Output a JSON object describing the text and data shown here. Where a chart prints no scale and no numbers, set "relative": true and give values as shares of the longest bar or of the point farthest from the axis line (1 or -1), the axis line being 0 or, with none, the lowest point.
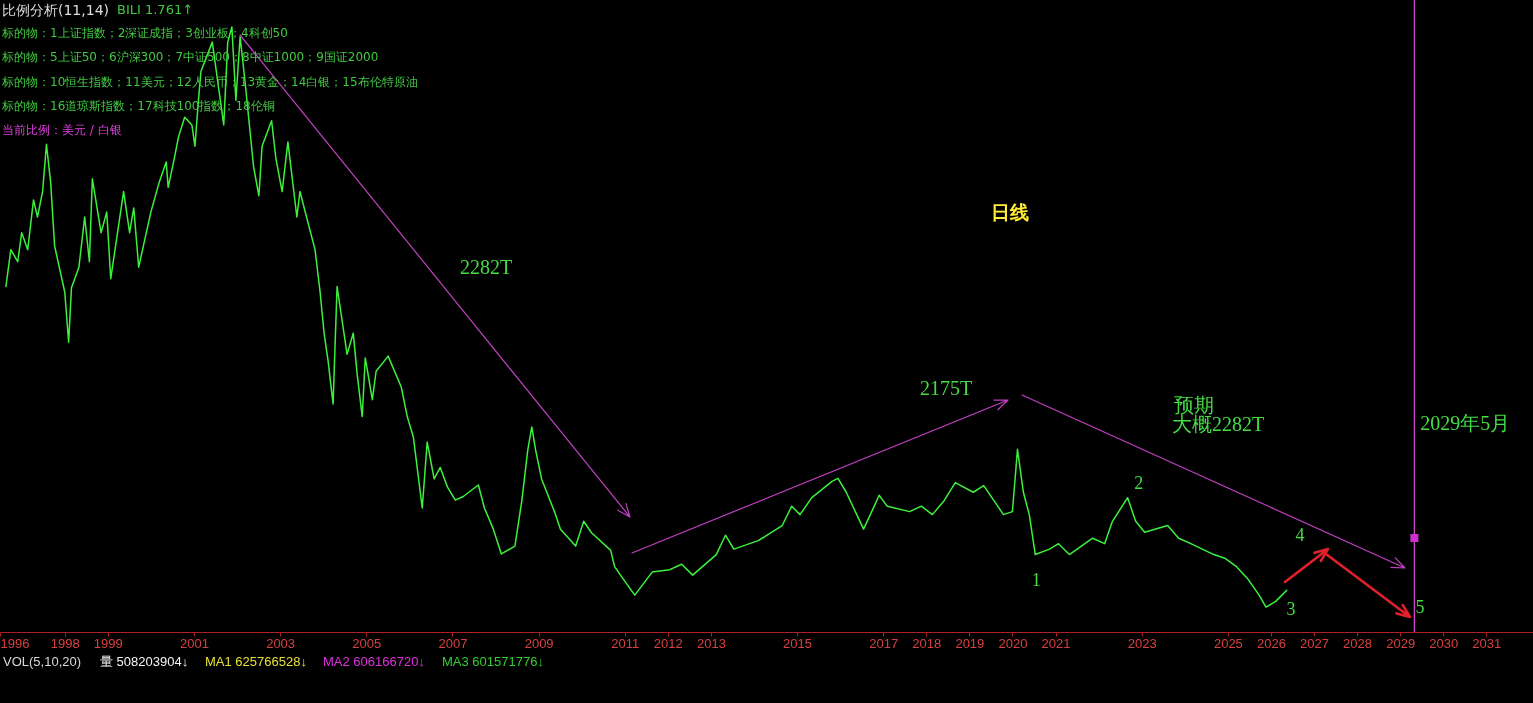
{
  "chart_data": {
    "type": "line",
    "title": "比例分析(11,14)",
    "relative": true,
    "xlim": [
      "1996-07",
      "2032-02"
    ],
    "xticks": [
      {
        "value": "1996-07",
        "label": "1996"
      },
      "1998",
      "1999",
      "2001",
      "2003",
      "2005",
      "2007",
      "2009",
      "2011",
      "2012",
      "2013",
      "2015",
      "2017",
      "2018",
      "2019",
      "2020",
      "2021",
      "2023",
      "2025",
      "2026",
      "2027",
      "2028",
      "2029",
      "2030",
      "2031"
    ],
    "x": [
      "1996-08-20",
      "1996-10-01",
      "1996-11-28",
      "1997-01-01",
      "1997-02-21",
      "1997-04-11",
      "1997-05-15",
      "1997-06-27",
      "1997-07-30",
      "1997-09-04",
      "1997-10-07",
      "1998-01-01",
      "1998-02-03",
      "1998-02-27",
      "1998-05-01",
      "1998-06-19",
      "1998-07-29",
      "1998-08-23",
      "1998-11-05",
      "1998-12-23",
      "1999-01-26",
      "1999-05-15",
      "1999-07-05",
      "1999-08-09",
      "1999-09-20",
      "2000-01-01",
      "2000-03-10",
      "2000-05-10",
      "2000-05-27",
      "2000-07-18",
      "2000-08-22",
      "2000-10-14",
      "2000-12-14",
      "2001-01-09",
      "2001-02-05",
      "2001-03-01",
      "2001-04-14",
      "2001-06-05",
      "2001-09-10",
      "2001-10-14",
      "2001-11-18",
      "2001-12-22",
      "2002-01-27",
      "2002-03-11",
      "2002-05-21",
      "2002-07-05",
      "2002-08-01",
      "2002-10-21",
      "2002-11-26",
      "2003-01-18",
      "2003-03-08",
      "2003-05-23",
      "2003-06-18",
      "2003-10-24",
      "2003-12-06",
      "2004-01-09",
      "2004-02-13",
      "2004-03-25",
      "2004-04-28",
      "2004-07-22",
      "2004-09-12",
      "2004-10-16",
      "2004-11-27",
      "2004-12-23",
      "2005-02-21",
      "2005-03-25",
      "2005-07-05",
      "2005-10-24",
      "2005-12-14",
      "2006-02-04",
      "2006-04-20",
      "2006-06-01",
      "2006-07-30",
      "2006-09-20",
      "2006-11-19",
      "2007-01-26",
      "2007-04-03",
      "2007-08-09",
      "2007-09-29",
      "2007-12-14",
      "2008-02-20",
      "2008-06-14",
      "2008-08-12",
      "2008-10-01",
      "2008-11-04",
      "2008-12-06",
      "2009-01-26",
      "2009-05-15",
      "2009-07-05",
      "2009-11-11",
      "2010-01-18",
      "2010-03-25",
      "2010-09-04",
      "2010-10-07",
      "2010-12-14",
      "2011-03-27",
      "2011-08-22",
      "2012-01-18",
      "2012-04-28",
      "2012-07-30",
      "2013-02-15",
      "2013-05-04",
      "2013-07-14",
      "2014-02-06",
      "2014-08-28",
      "2014-11-17",
      "2015-01-26",
      "2015-05-06",
      "2015-10-24",
      "2015-12-14",
      "2016-02-22",
      "2016-07-18",
      "2016-10-05",
      "2016-11-27",
      "2017-02-03",
      "2017-08-12",
      "2017-11-20",
      "2018-02-21",
      "2018-06-01",
      "2018-09-04",
      "2019-02-03",
      "2019-05-03",
      "2019-10-17",
      "2020-01-01",
      "2020-02-13",
      "2020-04-03",
      "2020-05-23",
      "2020-07-13",
      "2020-11-11",
      "2021-01-26",
      "2021-04-28",
      "2021-11-11",
      "2022-02-21",
      "2022-04-28",
      "2022-09-04",
      "2022-11-11",
      "2023-01-26",
      "2023-08-09",
      "2023-11-11",
      "2024-02-21",
      "2024-09-04",
      "2024-12-06",
      "2025-03-15",
      "2025-06-14",
      "2025-09-23",
      "2025-11-20",
      "2026-02-13",
      "2026-05-15"
    ],
    "series": [
      {
        "color": "#3cf03c",
        "values": [
          0.571,
          0.632,
          0.612,
          0.66,
          0.632,
          0.714,
          0.686,
          0.728,
          0.806,
          0.742,
          0.638,
          0.562,
          0.479,
          0.569,
          0.603,
          0.686,
          0.612,
          0.749,
          0.66,
          0.694,
          0.584,
          0.728,
          0.66,
          0.701,
          0.603,
          0.694,
          0.742,
          0.777,
          0.735,
          0.783,
          0.818,
          0.851,
          0.838,
          0.803,
          0.873,
          0.927,
          0.949,
          0.975,
          0.838,
          0.975,
          1,
          0.879,
          0.984,
          0.907,
          0.769,
          0.721,
          0.803,
          0.845,
          0.783,
          0.728,
          0.81,
          0.686,
          0.728,
          0.632,
          0.562,
          0.494,
          0.446,
          0.377,
          0.571,
          0.459,
          0.494,
          0.425,
          0.356,
          0.453,
          0.384,
          0.431,
          0.456,
          0.405,
          0.356,
          0.322,
          0.205,
          0.314,
          0.253,
          0.272,
          0.24,
          0.218,
          0.224,
          0.243,
          0.205,
          0.17,
          0.129,
          0.142,
          0.218,
          0.301,
          0.339,
          0.301,
          0.253,
          0.199,
          0.17,
          0.142,
          0.183,
          0.164,
          0.135,
          0.108,
          0.089,
          0.061,
          0.099,
          0.103,
          0.112,
          0.094,
          0.128,
          0.16,
          0.137,
          0.151,
          0.176,
          0.208,
          0.194,
          0.222,
          0.249,
          0.254,
          0.231,
          0.17,
          0.203,
          0.226,
          0.208,
          0.199,
          0.208,
          0.194,
          0.217,
          0.247,
          0.231,
          0.242,
          0.194,
          0.199,
          0.302,
          0.231,
          0.194,
          0.128,
          0.137,
          0.146,
          0.128,
          0.155,
          0.146,
          0.183,
          0.222,
          0.183,
          0.165,
          0.176,
          0.155,
          0.146,
          0.128,
          0.122,
          0.108,
          0.089,
          0.061,
          0.041,
          0.051,
          0.069
        ]
      }
    ],
    "ref_lines": [
      {
        "axis": "x",
        "value": "2029-05",
        "label": "2029年5月",
        "color": "#cc44cc"
      }
    ],
    "annotations": [
      "BILI 1.761↑",
      "标的物：1上证指数；2深证成指；3创业板；4科创50",
      "标的物：5上证50；6沪深300；7中证500；8中证1000；9国证2000",
      "标的物：10恒生指数；11美元；12人民币；13黄金；14白银；15布伦特原油",
      "标的物：16道琼斯指数；17科技100指数；18伦铜",
      "当前比例：美元 / 白银",
      "日线",
      "2282T",
      "2175T",
      "预期",
      "大概2282T",
      {
        "text": "1",
        "x": "2020-07-13",
        "y": 0.128
      },
      {
        "text": "2",
        "x": "2022-09-04",
        "y": 0.222
      },
      {
        "text": "3",
        "x": "2025-11-20",
        "y": 0.041
      },
      "4",
      "5",
      "VOL(5,10,20)",
      "量 508203904↓",
      "MA1 625766528↓",
      "MA2 606166720↓",
      "MA3 601571776↓"
    ]
  }
}
